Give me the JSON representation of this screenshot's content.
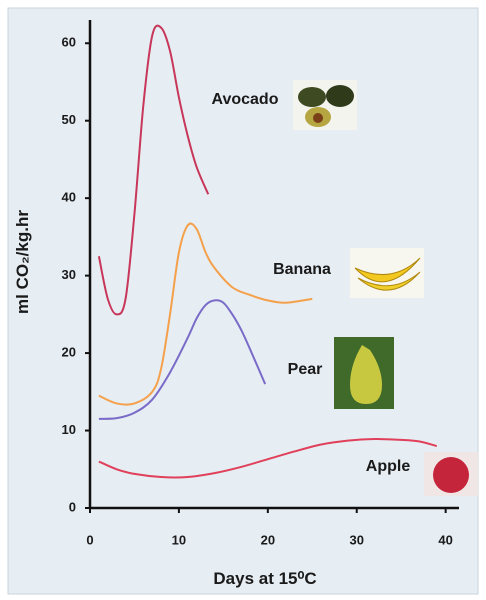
{
  "chart_data": {
    "type": "line",
    "x_label": "Days at 15⁰C",
    "y_label": "ml CO₂/kg.hr",
    "xlim": [
      0,
      41.5
    ],
    "ylim": [
      0,
      63
    ],
    "xticks": [
      0,
      10,
      20,
      30,
      40
    ],
    "yticks": [
      0,
      10,
      20,
      30,
      40,
      50,
      60
    ],
    "series": [
      {
        "name": "Avocado",
        "color": "#c8375a",
        "x": [
          1,
          2,
          3,
          4,
          5,
          6,
          7,
          8,
          9,
          10,
          11,
          12,
          13.3
        ],
        "values": [
          32.5,
          27,
          25,
          27,
          38,
          52,
          61,
          62,
          59,
          53,
          48,
          44,
          40.5
        ]
      },
      {
        "name": "Banana",
        "color": "#f5a04a",
        "x": [
          1,
          3,
          5,
          7,
          8,
          9,
          10,
          11,
          12,
          13,
          14,
          16,
          18,
          20,
          22,
          25
        ],
        "values": [
          14.5,
          13.5,
          13.5,
          15,
          18,
          25,
          33,
          36.5,
          36,
          33,
          31,
          28.5,
          27.5,
          26.8,
          26.5,
          27
        ]
      },
      {
        "name": "Pear",
        "color": "#7a6bc8",
        "x": [
          1,
          3,
          5,
          7,
          9,
          11,
          12,
          13,
          14,
          15,
          16,
          17,
          18,
          19.7
        ],
        "values": [
          11.5,
          11.6,
          12.3,
          14,
          17.5,
          22,
          24.5,
          26.2,
          26.8,
          26.5,
          25,
          23,
          20.5,
          16
        ]
      },
      {
        "name": "Apple",
        "color": "#e0405a",
        "x": [
          1,
          3,
          5,
          8,
          11,
          14,
          17,
          20,
          23,
          26,
          29,
          32,
          35,
          37,
          39
        ],
        "values": [
          6,
          5,
          4.4,
          4,
          4,
          4.5,
          5.3,
          6.3,
          7.3,
          8.2,
          8.7,
          8.9,
          8.8,
          8.6,
          8
        ]
      }
    ]
  }
}
